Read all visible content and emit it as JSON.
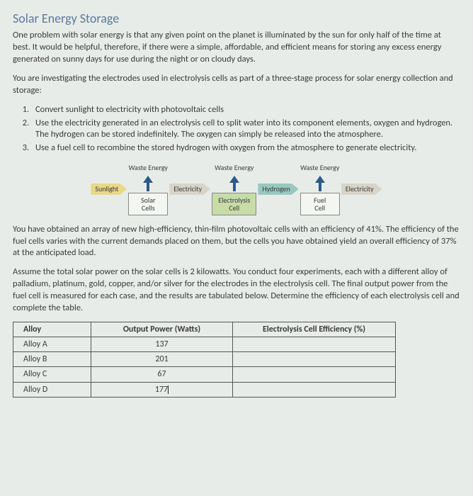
{
  "title": "Solar Energy Storage",
  "intro": "One problem with solar energy is that any given point on the planet is illuminated by the sun for only half of the time at best. It would be helpful, therefore, if there were a simple, affordable, and efficient means for storing any excess energy generated on sunny days for use during the night or on cloudy days.",
  "lead": "You are investigating the electrodes used in electrolysis cells as part of a three-stage process for solar energy collection and storage:",
  "steps": [
    "Convert sunlight to electricity with photovoltaic cells",
    "Use the electricity generated in an electrolysis cell to split water into its component elements, oxygen and hydrogen. The hydrogen can be stored indefinitely. The oxygen can simply be released into the atmosphere.",
    "Use a fuel cell to recombine the stored hydrogen with oxygen from the atmosphere to generate electricity."
  ],
  "flow": {
    "waste_label": "Waste Energy",
    "sunlight": "Sunlight",
    "solar_cells": "Solar\nCells",
    "electricity1": "Electricity",
    "electrolysis": "Electrolysis\nCell",
    "hydrogen": "Hydrogen",
    "fuel_cell": "Fuel\nCell",
    "electricity2": "Electricity",
    "colors": {
      "arrow_blue": "#2a5a8a",
      "box_green": "#c8dca8",
      "arrow_yellow": "#e8d888",
      "arrow_gray": "#d8d4c8",
      "arrow_teal": "#98c8c0"
    }
  },
  "para_after1": "You have obtained an array of new high-efficiency, thin-film photovoltaic cells with an efficiency of 41%. The efficiency of the fuel cells varies with the current demands placed on them, but the cells you have obtained yield an overall efficiency of 37% at the anticipated load.",
  "para_after2": "Assume the total solar power on the solar cells is 2 kilowatts. You conduct four experiments, each with a different alloy of palladium, platinum, gold, copper, and/or silver for the electrodes in the electrolysis cell. The final output power from the fuel cell is measured for each case, and the results are tabulated below. Determine the efficiency of each electrolysis cell and complete the table.",
  "table": {
    "headers": {
      "alloy": "Alloy",
      "power": "Output Power (Watts)",
      "eff": "Electrolysis Cell Efficiency (%)"
    },
    "rows": [
      {
        "alloy": "Alloy A",
        "power": "137",
        "eff": ""
      },
      {
        "alloy": "Alloy B",
        "power": "201",
        "eff": ""
      },
      {
        "alloy": "Alloy C",
        "power": "67",
        "eff": ""
      },
      {
        "alloy": "Alloy D",
        "power": "177",
        "eff": ""
      }
    ]
  }
}
